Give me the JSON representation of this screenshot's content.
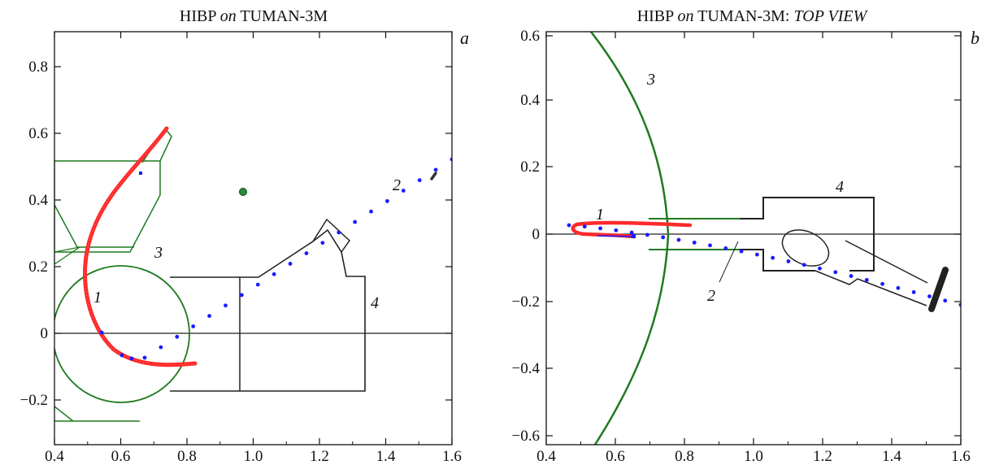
{
  "colors": {
    "trajectory": "#ff2a2a",
    "beam_dots": "#1a1aff",
    "plasma": "#1f7a1f",
    "chamber": "#222222",
    "marker": "#2a8a3a"
  },
  "panels": [
    {
      "id": "a",
      "title_parts": [
        {
          "text": "HIBP ",
          "italic": false
        },
        {
          "text": "on",
          "italic": true
        },
        {
          "text": " TUMAN-3M",
          "italic": false
        }
      ],
      "letter": "a",
      "callouts": [
        "1",
        "2",
        "3",
        "4"
      ],
      "x_ticks": [
        "0.4",
        "0.6",
        "0.8",
        "1.0",
        "1.2",
        "1.4",
        "1.6"
      ],
      "y_ticks": [
        "−0.2",
        "0",
        "0.2",
        "0.4",
        "0.6",
        "0.8"
      ]
    },
    {
      "id": "b",
      "title_parts": [
        {
          "text": "HIBP ",
          "italic": false
        },
        {
          "text": "on",
          "italic": true
        },
        {
          "text": " TUMAN-3M: ",
          "italic": false
        },
        {
          "text": "TOP VIEW",
          "italic": true
        }
      ],
      "letter": "b",
      "callouts": [
        "1",
        "2",
        "3",
        "4"
      ],
      "x_ticks": [
        "0.4",
        "0.6",
        "0.8",
        "1.0",
        "1.2",
        "1.4",
        "1.6"
      ],
      "y_ticks": [
        "−0.6",
        "−0.4",
        "−0.2",
        "0",
        "0.2",
        "0.4",
        "0.6"
      ]
    }
  ]
}
